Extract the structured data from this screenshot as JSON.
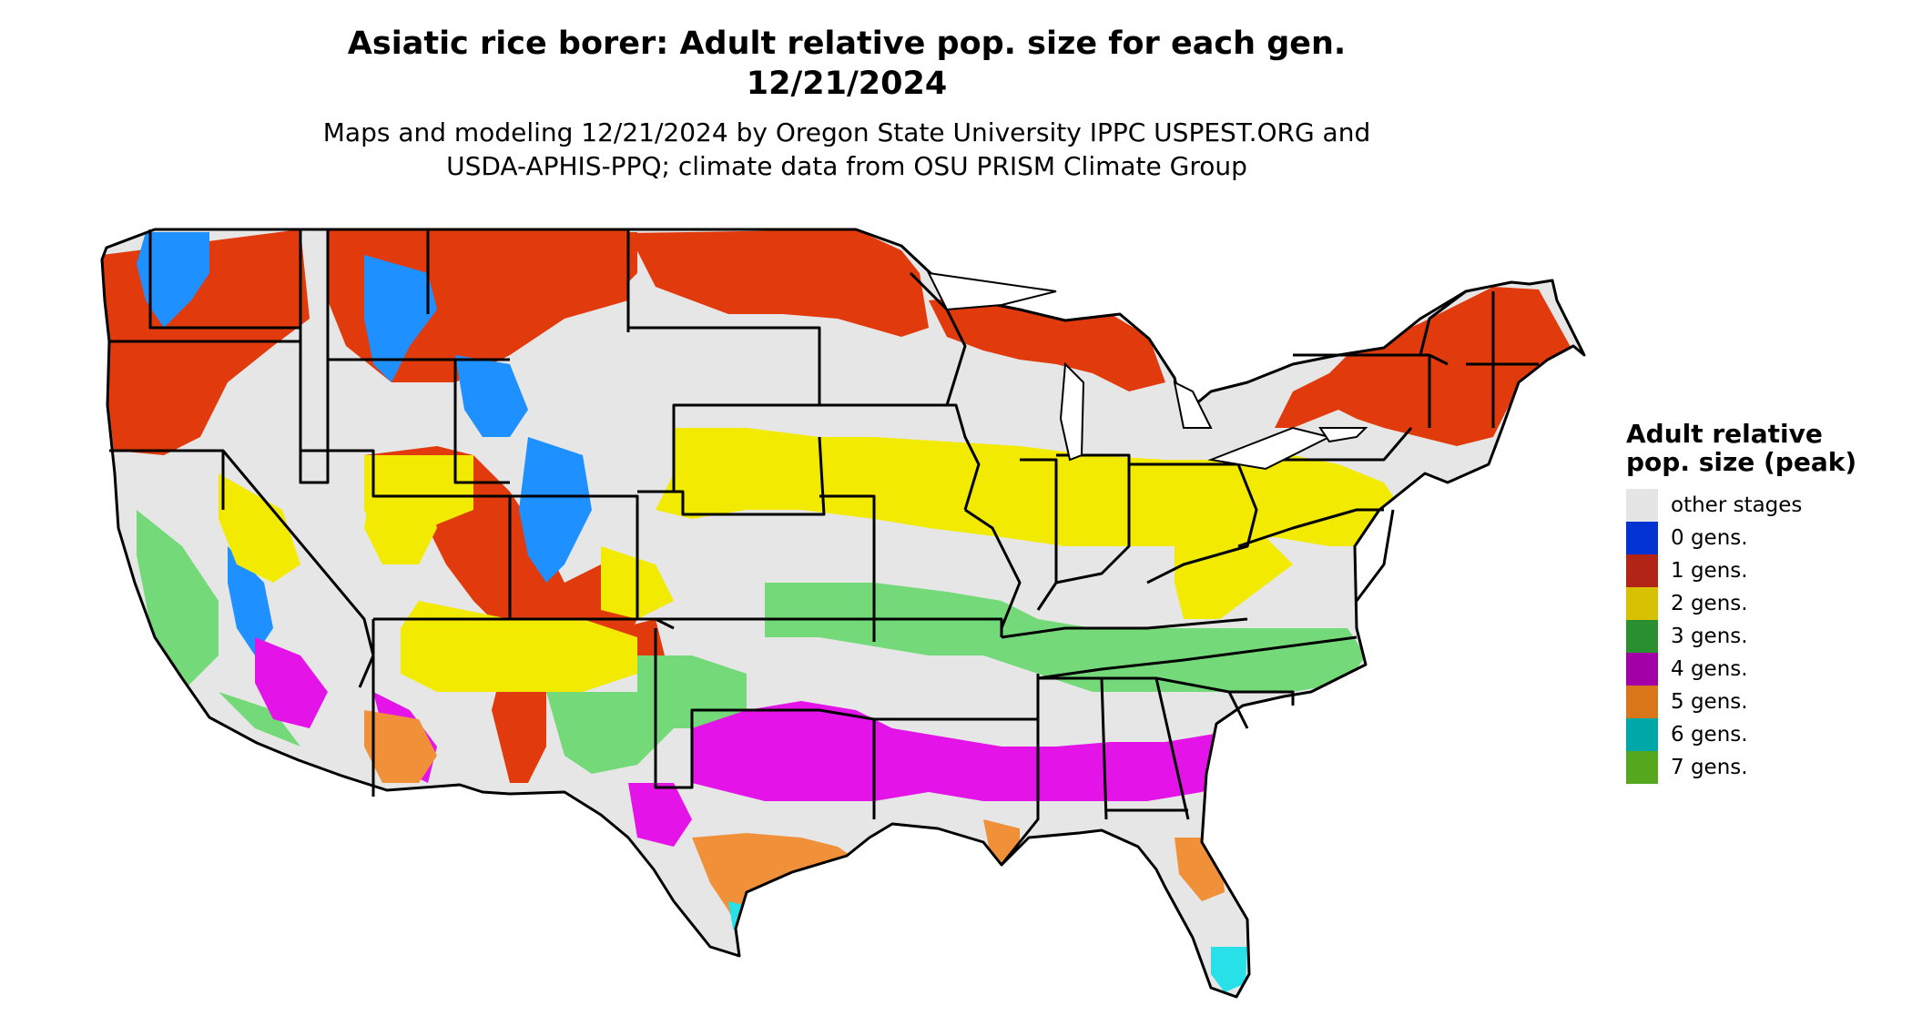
{
  "header": {
    "title_line1": "Asiatic rice borer: Adult relative pop. size for each gen.",
    "title_line2": "12/21/2024",
    "subtitle_line1": "Maps and modeling 12/21/2024 by Oregon State University IPPC USPEST.ORG and",
    "subtitle_line2": "USDA-APHIS-PPQ; climate data from OSU PRISM Climate Group"
  },
  "legend": {
    "title": "Adult relative pop. size (peak)",
    "items": [
      {
        "label": "other stages",
        "color": "#e5e5e5"
      },
      {
        "label": "0 gens.",
        "color": "#0433d4"
      },
      {
        "label": "1 gens.",
        "color": "#b22516"
      },
      {
        "label": "2 gens.",
        "color": "#d8c100"
      },
      {
        "label": "3 gens.",
        "color": "#2a8f2e"
      },
      {
        "label": "4 gens.",
        "color": "#a400a8"
      },
      {
        "label": "5 gens.",
        "color": "#d9761a"
      },
      {
        "label": "6 gens.",
        "color": "#00a7a7"
      },
      {
        "label": "7 gens.",
        "color": "#55a81d"
      }
    ]
  },
  "map_colors": {
    "background": "#e6e6e6",
    "one_gen": "#e13a0c",
    "zero_gen": "#1e90ff",
    "two_gen": "#f2ea00",
    "three_gen": "#74d978",
    "four_gen": "#e414e8",
    "five_gen": "#f0913a",
    "six_gen": "#27e0e8",
    "border": "#000000"
  }
}
